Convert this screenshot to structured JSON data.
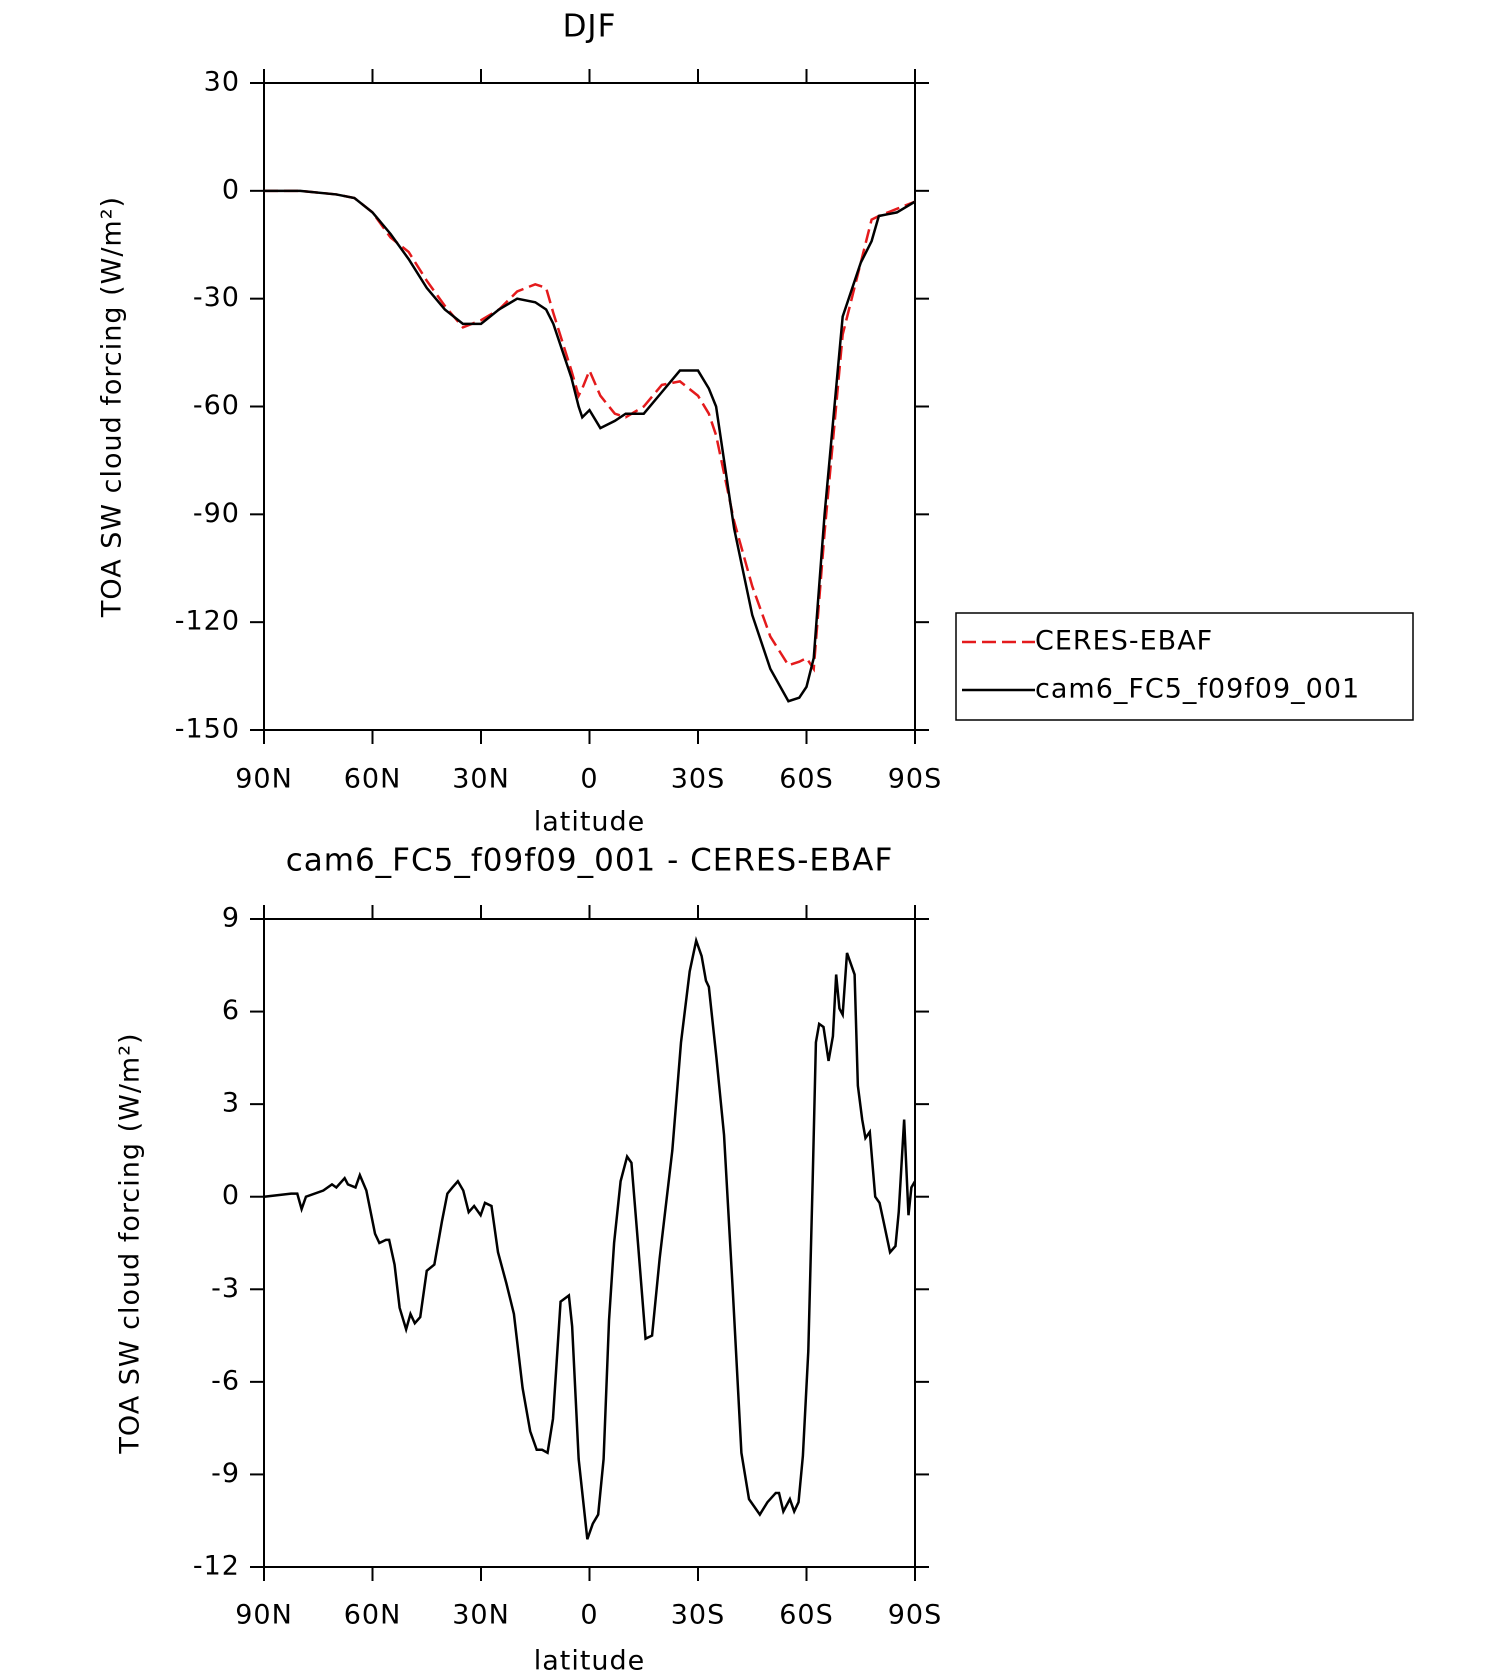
{
  "chart_data": [
    {
      "type": "line",
      "title": "DJF",
      "xlabel": "latitude",
      "ylabel": "TOA SW cloud forcing (W/m²)",
      "xlim": [
        90,
        -90
      ],
      "xticks": [
        {
          "value": 90,
          "label": "90N"
        },
        {
          "value": 60,
          "label": "60N"
        },
        {
          "value": 30,
          "label": "30N"
        },
        0,
        {
          "value": -30,
          "label": "30S"
        },
        {
          "value": -60,
          "label": "60S"
        },
        {
          "value": -90,
          "label": "90S"
        }
      ],
      "ylim": [
        -150,
        30
      ],
      "yticks": [
        -150,
        -120,
        -90,
        -60,
        -30,
        0,
        30
      ],
      "legend": "right",
      "x": [
        90,
        80,
        70,
        65,
        60,
        55,
        50,
        45,
        40,
        35,
        30,
        25,
        20,
        15,
        12,
        10,
        5,
        3,
        2,
        0,
        -3,
        -7,
        -10,
        -15,
        -20,
        -25,
        -30,
        -33,
        -35,
        -40,
        -45,
        -50,
        -55,
        -58,
        -60,
        -62,
        -65,
        -70,
        -75,
        -78,
        -80,
        -85,
        -90
      ],
      "series": [
        {
          "name": "CERES-EBAF",
          "color": "#e41a1c",
          "dashed": true,
          "values": [
            0,
            0,
            -1,
            -2,
            -6,
            -13,
            -17,
            -25,
            -32,
            -38,
            -36,
            -33,
            -28,
            -26,
            -27,
            -34,
            -50,
            -57,
            -55,
            -50,
            -57,
            -62,
            -63,
            -60,
            -54,
            -53,
            -57,
            -62,
            -68,
            -92,
            -110,
            -124,
            -132,
            -131,
            -130,
            -133,
            -95,
            -40,
            -20,
            -8,
            -7,
            -5,
            -3
          ]
        },
        {
          "name": "cam6_FC5_f09f09_001",
          "color": "#000000",
          "dashed": false,
          "values": [
            0,
            0,
            -1,
            -2,
            -6,
            -12,
            -19,
            -27,
            -33,
            -37,
            -37,
            -33,
            -30,
            -31,
            -33,
            -37,
            -52,
            -60,
            -63,
            -61,
            -66,
            -64,
            -62,
            -62,
            -56,
            -50,
            -50,
            -55,
            -60,
            -94,
            -118,
            -133,
            -142,
            -141,
            -138,
            -130,
            -90,
            -35,
            -20,
            -14,
            -7,
            -6,
            -3
          ]
        }
      ]
    },
    {
      "type": "line",
      "title": "cam6_FC5_f09f09_001 - CERES-EBAF",
      "xlabel": "latitude",
      "ylabel": "TOA SW cloud forcing (W/m²)",
      "xlim": [
        90,
        -90
      ],
      "xticks": [
        {
          "value": 90,
          "label": "90N"
        },
        {
          "value": 60,
          "label": "60N"
        },
        {
          "value": 30,
          "label": "30N"
        },
        0,
        {
          "value": -30,
          "label": "30S"
        },
        {
          "value": -60,
          "label": "60S"
        },
        {
          "value": -90,
          "label": "90S"
        }
      ],
      "ylim": [
        -12,
        9
      ],
      "yticks": [
        -12,
        -9,
        -6,
        -3,
        0,
        3,
        6,
        9
      ],
      "x": [
        90,
        82.5,
        80.8,
        79.6,
        78.4,
        73.6,
        71.2,
        70,
        67.7,
        66.8,
        64.7,
        63.5,
        61.7,
        60.5,
        59.3,
        58.1,
        56.3,
        55.4,
        53.9,
        52.5,
        50.7,
        49.5,
        48.3,
        46.8,
        45,
        42.9,
        40.8,
        39.3,
        37.9,
        36.4,
        34.9,
        33.4,
        31.9,
        30.1,
        28.9,
        27.1,
        25.3,
        23,
        20.9,
        18.5,
        16.4,
        14.6,
        13.1,
        11.6,
        10.1,
        8,
        5.7,
        4.8,
        3,
        0.6,
        -0.9,
        -2.4,
        -3.9,
        -5.4,
        -6.8,
        -8.6,
        -10.4,
        -11.6,
        -13.4,
        -15.5,
        -17.3,
        -19.4,
        -22.9,
        -25.3,
        -27.7,
        -29.5,
        -31,
        -32.2,
        -33,
        -35.1,
        -37.2,
        -39.6,
        -42,
        -44.1,
        -47.1,
        -49.2,
        -51.5,
        -52.4,
        -53.6,
        -55.4,
        -56.6,
        -57.8,
        -59,
        -60.5,
        -61.7,
        -62.6,
        -63.5,
        -64.7,
        -66.1,
        -67.3,
        -68.2,
        -69.1,
        -70,
        -71.2,
        -73.3,
        -74.2,
        -75.4,
        -76.3,
        -77.5,
        -79,
        -80.2,
        -81.3,
        -83.1,
        -84.6,
        -85.5,
        -87,
        -88.2,
        -89,
        -90
      ],
      "series": [
        {
          "name": "cam6_FC5_f09f09_001 - CERES-EBAF",
          "color": "#000000",
          "dashed": false,
          "values": [
            0,
            0.1,
            0.1,
            -0.4,
            0,
            0.2,
            0.4,
            0.3,
            0.6,
            0.4,
            0.3,
            0.7,
            0.2,
            -0.5,
            -1.2,
            -1.5,
            -1.4,
            -1.4,
            -2.2,
            -3.6,
            -4.3,
            -3.8,
            -4.1,
            -3.9,
            -2.4,
            -2.2,
            -0.8,
            0.1,
            0.3,
            0.5,
            0.2,
            -0.5,
            -0.3,
            -0.6,
            -0.2,
            -0.3,
            -1.8,
            -2.8,
            -3.8,
            -6.2,
            -7.6,
            -8.2,
            -8.2,
            -8.3,
            -7.2,
            -3.4,
            -3.2,
            -4.2,
            -8.5,
            -11.1,
            -10.6,
            -10.3,
            -8.5,
            -4,
            -1.5,
            0.5,
            1.3,
            1.1,
            -1.5,
            -4.6,
            -4.5,
            -2,
            1.5,
            5,
            7.3,
            8.3,
            7.8,
            7,
            6.8,
            4.5,
            2,
            -3,
            -8.3,
            -9.8,
            -10.3,
            -9.9,
            -9.6,
            -9.6,
            -10.2,
            -9.8,
            -10.2,
            -9.9,
            -8.4,
            -5,
            0.5,
            5,
            5.6,
            5.5,
            4.4,
            5.2,
            7.2,
            6.1,
            5.9,
            7.9,
            7.2,
            3.6,
            2.5,
            1.9,
            2.1,
            0,
            -0.2,
            -0.8,
            -1.8,
            -1.6,
            -0.5,
            2.5,
            -0.6,
            0.3,
            0.5
          ]
        }
      ]
    }
  ]
}
